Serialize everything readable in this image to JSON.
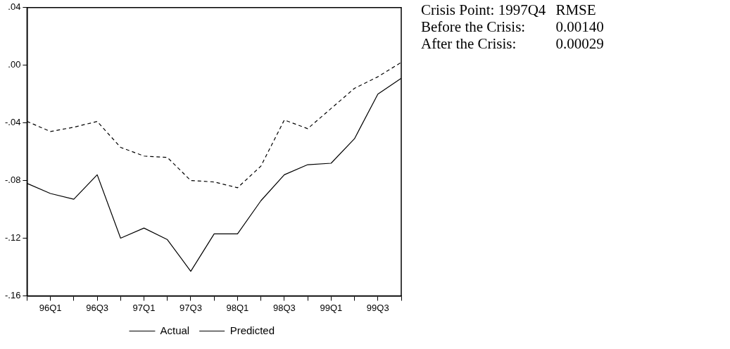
{
  "chart_data": {
    "type": "line",
    "categories": [
      null,
      "96Q1",
      null,
      "96Q3",
      null,
      "97Q1",
      null,
      "97Q3",
      null,
      "98Q1",
      null,
      "98Q3",
      null,
      "99Q1",
      null,
      "99Q3",
      null
    ],
    "series": [
      {
        "name": "Actual",
        "color": "#000000",
        "line_style": "solid",
        "values": [
          -0.082,
          -0.089,
          -0.093,
          -0.076,
          -0.12,
          -0.113,
          -0.121,
          -0.143,
          -0.117,
          -0.117,
          -0.094,
          -0.076,
          -0.069,
          -0.068,
          -0.051,
          -0.02,
          -0.009
        ]
      },
      {
        "name": "Predicted",
        "color": "#000000",
        "line_style": "dashed",
        "values": [
          -0.039,
          -0.046,
          -0.043,
          -0.039,
          -0.057,
          -0.063,
          -0.064,
          -0.08,
          -0.081,
          -0.085,
          -0.07,
          -0.038,
          -0.044,
          -0.03,
          -0.016,
          -0.008,
          0.002
        ]
      }
    ],
    "ylim": [
      -0.16,
      0.04
    ],
    "yticks": [
      {
        "value": -0.16,
        "label": "-.16"
      },
      {
        "value": -0.12,
        "label": "-.12"
      },
      {
        "value": -0.08,
        "label": "-.08"
      },
      {
        "value": -0.04,
        "label": "-.04"
      },
      {
        "value": 0,
        "label": ".00"
      },
      {
        "value": 0.04,
        "label": ".04"
      }
    ],
    "grid": false,
    "legend": "bottom",
    "marker": "none",
    "annotations": [
      "Crisis Point: 1997Q4",
      "RMSE",
      "Before the Crisis:",
      "0.00140",
      "After the Crisis:",
      "0.00029"
    ]
  }
}
